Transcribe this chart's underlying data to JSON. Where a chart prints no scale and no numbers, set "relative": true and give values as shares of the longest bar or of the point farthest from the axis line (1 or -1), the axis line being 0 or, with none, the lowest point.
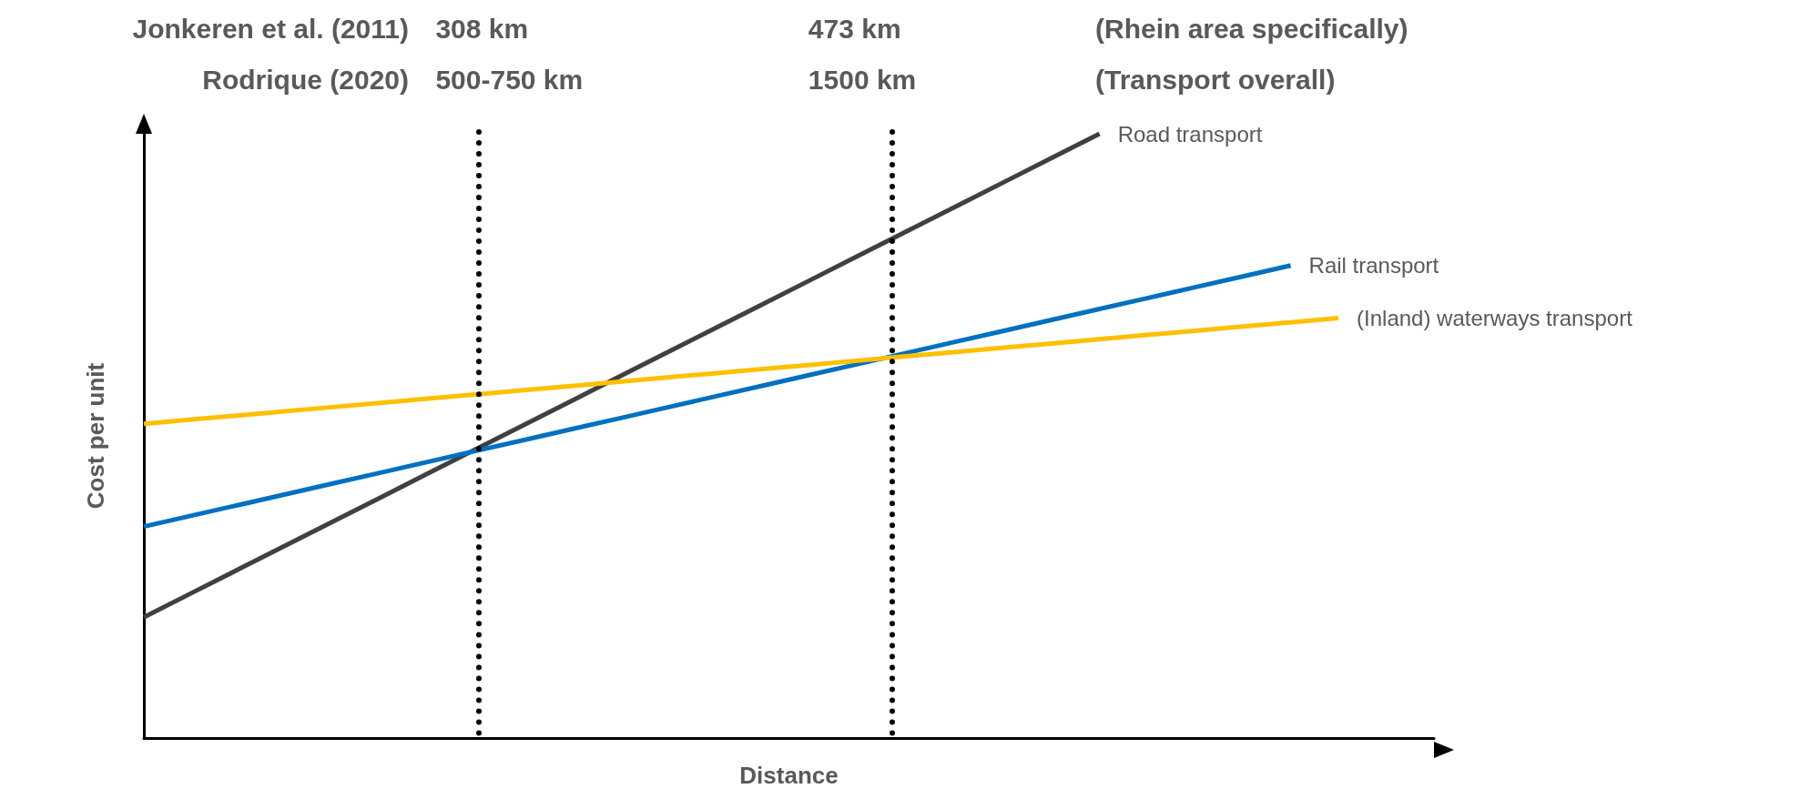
{
  "chart_data": {
    "type": "line",
    "relative": true,
    "xlabel": "Distance",
    "ylabel": "Cost per unit",
    "legend": false,
    "grid": false,
    "marker": "none",
    "categories": [
      null,
      null,
      null,
      null,
      null,
      null,
      null,
      null,
      null,
      null,
      null,
      null,
      null,
      null,
      null,
      null,
      null,
      null,
      null,
      null,
      null,
      null,
      null,
      null,
      null,
      null,
      null,
      null
    ],
    "series": [
      {
        "name": "Road transport",
        "color": "#404040",
        "values": [
          0.2,
          0.24,
          0.28,
          0.32,
          0.36,
          0.4,
          0.44,
          0.48,
          0.52,
          0.56,
          0.6,
          0.64,
          0.68,
          0.72,
          0.76,
          0.8,
          0.84,
          0.88,
          0.92,
          0.96,
          1.0,
          null,
          null,
          null,
          null,
          null,
          null,
          null
        ]
      },
      {
        "name": "Rail transport",
        "color": "#0070c0",
        "values": [
          0.35,
          0.368,
          0.386,
          0.404,
          0.422,
          0.44,
          0.458,
          0.476,
          0.494,
          0.512,
          0.53,
          0.548,
          0.566,
          0.584,
          0.602,
          0.62,
          0.638,
          0.656,
          0.674,
          0.692,
          0.71,
          0.728,
          0.746,
          0.764,
          0.782,
          null,
          null,
          null
        ]
      },
      {
        "name": "(Inland) waterways transport",
        "color": "#ffc000",
        "values": [
          0.52,
          0.527,
          0.534,
          0.541,
          0.548,
          0.555,
          0.562,
          0.569,
          0.576,
          0.583,
          0.59,
          0.597,
          0.604,
          0.611,
          0.618,
          0.625,
          0.632,
          0.639,
          0.646,
          0.653,
          0.66,
          0.667,
          0.674,
          0.681,
          0.688,
          0.695,
          null,
          null
        ]
      }
    ],
    "annotations": [
      "Jonkeren et al. (2011)",
      "Rodrique (2020)",
      "308 km",
      "500-750 km",
      "473 km",
      "1500 km",
      "(Rhein area specifically)",
      "(Transport overall)"
    ]
  }
}
